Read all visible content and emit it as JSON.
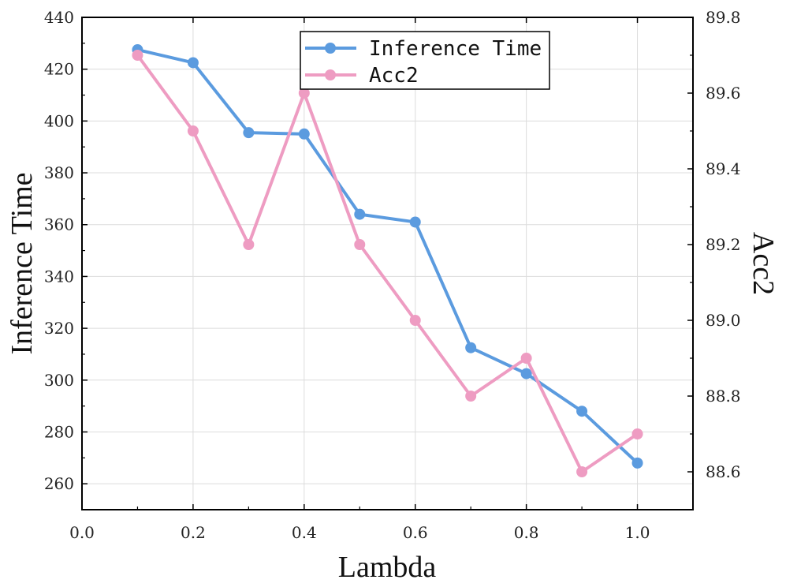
{
  "chart_data": {
    "type": "line",
    "xlabel": "Lambda",
    "ylabel_left": "Inference Time",
    "ylabel_right": "Acc2",
    "xlim": [
      0,
      1.1
    ],
    "ylim_left": [
      250,
      440
    ],
    "ylim_right": [
      88.5,
      89.8
    ],
    "x_ticks": [
      "0.0",
      "0.2",
      "0.4",
      "0.6",
      "0.8",
      "1.0"
    ],
    "x_tick_values": [
      0.0,
      0.2,
      0.4,
      0.6,
      0.8,
      1.0
    ],
    "y_ticks_left": [
      "260",
      "280",
      "300",
      "320",
      "340",
      "360",
      "380",
      "400",
      "420",
      "440"
    ],
    "y_tick_values_left": [
      260,
      280,
      300,
      320,
      340,
      360,
      380,
      400,
      420,
      440
    ],
    "y_ticks_right": [
      "88.6",
      "88.8",
      "89.0",
      "89.2",
      "89.4",
      "89.6",
      "89.8"
    ],
    "y_tick_values_right": [
      88.6,
      88.8,
      89.0,
      89.2,
      89.4,
      89.6,
      89.8
    ],
    "grid": true,
    "legend_position": "top-center",
    "x": [
      0.1,
      0.2,
      0.3,
      0.4,
      0.5,
      0.6,
      0.7,
      0.8,
      0.9,
      1.0
    ],
    "series": [
      {
        "name": "Inference Time",
        "axis": "left",
        "color": "#5b9bdf",
        "values": [
          427.5,
          422.5,
          395.5,
          395.0,
          364.0,
          361.0,
          312.5,
          302.5,
          288.0,
          268.0
        ]
      },
      {
        "name": "Acc2",
        "axis": "right",
        "color": "#ee9cc2",
        "values": [
          89.7,
          89.5,
          89.2,
          89.6,
          89.2,
          89.0,
          88.8,
          88.9,
          88.6,
          88.7
        ]
      }
    ]
  }
}
